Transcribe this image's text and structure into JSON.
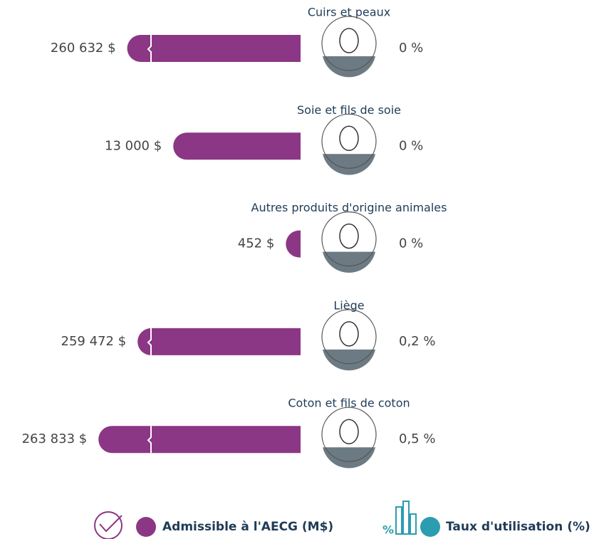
{
  "chart_data": {
    "type": "bar",
    "categories": [
      "Cuirs et peaux",
      "Soie et fils de soie",
      "Autres produits d'origine animales",
      "Liège",
      "Coton et fils de coton"
    ],
    "series": [
      {
        "name": "Admissible à l'AECG (M$)",
        "color": "#8b3785",
        "values": [
          260632,
          13000,
          452,
          259472,
          263833
        ],
        "value_labels": [
          "260 632 $",
          "13 000 $",
          "452 $",
          "259 472 $",
          "263 833 $"
        ]
      },
      {
        "name": "Taux d'utilisation (%)",
        "color": "#2b9db0",
        "values": [
          0,
          0,
          0,
          0.2,
          0.5
        ],
        "value_labels": [
          "0 %",
          "0 %",
          "0 %",
          "0,2 %",
          "0,5 %"
        ]
      }
    ]
  }
}
